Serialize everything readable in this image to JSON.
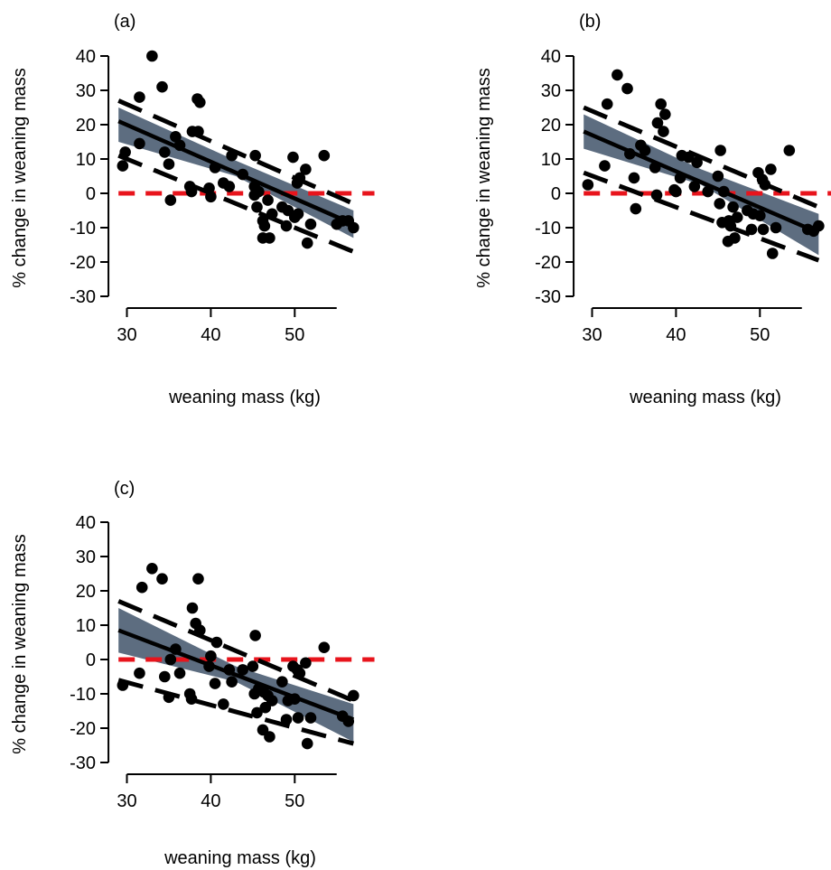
{
  "chart_data": [
    {
      "type": "scatter",
      "panel_label": "(a)",
      "xlabel": "weaning mass (kg)",
      "ylabel": "% change in weaning mass",
      "xlim": [
        28,
        57
      ],
      "ylim": [
        -30,
        40
      ],
      "xticks": [
        30,
        40,
        50
      ],
      "yticks": [
        -30,
        -20,
        -10,
        0,
        10,
        20,
        30,
        40
      ],
      "points": [
        [
          29.5,
          8
        ],
        [
          29.8,
          12
        ],
        [
          31.5,
          28
        ],
        [
          31.5,
          14.5
        ],
        [
          33,
          40
        ],
        [
          34.2,
          31
        ],
        [
          34.5,
          12
        ],
        [
          35,
          8.5
        ],
        [
          35.2,
          -2
        ],
        [
          35.8,
          16.5
        ],
        [
          36.3,
          14
        ],
        [
          37.5,
          2
        ],
        [
          37.7,
          0.5
        ],
        [
          37.8,
          18
        ],
        [
          38.4,
          27.5
        ],
        [
          38.5,
          18
        ],
        [
          38.7,
          26.5
        ],
        [
          39.8,
          1.5
        ],
        [
          40,
          -1
        ],
        [
          40.5,
          7.5
        ],
        [
          41.5,
          3
        ],
        [
          42.2,
          2
        ],
        [
          42.5,
          11
        ],
        [
          43.8,
          5.5
        ],
        [
          45.2,
          -0.5
        ],
        [
          45.2,
          2
        ],
        [
          45.3,
          11
        ],
        [
          45.5,
          -4
        ],
        [
          45.7,
          0.5
        ],
        [
          46.2,
          -13
        ],
        [
          46.2,
          -8
        ],
        [
          46.4,
          -9.5
        ],
        [
          46.8,
          -2
        ],
        [
          47,
          -13
        ],
        [
          47.3,
          -6
        ],
        [
          48.5,
          -4
        ],
        [
          49,
          -9.5
        ],
        [
          49.2,
          -5
        ],
        [
          49.8,
          10.5
        ],
        [
          50,
          -7
        ],
        [
          50.3,
          3
        ],
        [
          50.4,
          -6
        ],
        [
          50.6,
          4.5
        ],
        [
          51.3,
          7
        ],
        [
          51.5,
          -14.5
        ],
        [
          51.9,
          -9
        ],
        [
          53.5,
          11
        ],
        [
          55,
          -9
        ],
        [
          55.7,
          -8
        ],
        [
          56.4,
          -8
        ],
        [
          57,
          -10
        ]
      ],
      "fit": {
        "x": [
          29,
          57
        ],
        "y": [
          21,
          -9
        ]
      },
      "ci_band": {
        "x": [
          29,
          43,
          57
        ],
        "upper": [
          25,
          9.5,
          -5
        ],
        "lower": [
          15,
          5,
          -13
        ]
      },
      "prediction_interval": {
        "x": [
          29,
          57
        ],
        "upper": [
          27,
          -3
        ],
        "lower": [
          11,
          -17
        ]
      },
      "reference_line": {
        "y": 0,
        "color": "#e8141c"
      }
    },
    {
      "type": "scatter",
      "panel_label": "(b)",
      "xlabel": "weaning mass (kg)",
      "ylabel": "% change in weaning mass",
      "xlim": [
        28,
        57
      ],
      "ylim": [
        -30,
        40
      ],
      "xticks": [
        30,
        40,
        50
      ],
      "yticks": [
        -30,
        -20,
        -10,
        0,
        10,
        20,
        30,
        40
      ],
      "points": [
        [
          29.5,
          2.5
        ],
        [
          31.5,
          8
        ],
        [
          31.8,
          26
        ],
        [
          33,
          34.5
        ],
        [
          34.2,
          30.5
        ],
        [
          34.5,
          11.5
        ],
        [
          35,
          4.5
        ],
        [
          35.2,
          -4.5
        ],
        [
          35.8,
          14
        ],
        [
          36.3,
          12.5
        ],
        [
          37.5,
          7.5
        ],
        [
          37.7,
          -0.5
        ],
        [
          37.8,
          20.5
        ],
        [
          38.2,
          26
        ],
        [
          38.5,
          18
        ],
        [
          38.7,
          23
        ],
        [
          39.8,
          1
        ],
        [
          40,
          0.5
        ],
        [
          40.5,
          4.5
        ],
        [
          40.7,
          11
        ],
        [
          41.5,
          10.5
        ],
        [
          42.2,
          2
        ],
        [
          42.5,
          9
        ],
        [
          43.8,
          0.5
        ],
        [
          45,
          5
        ],
        [
          45.2,
          -3
        ],
        [
          45.3,
          12.5
        ],
        [
          45.5,
          -8.5
        ],
        [
          45.7,
          0.5
        ],
        [
          46.2,
          -14
        ],
        [
          46.3,
          -8
        ],
        [
          46.5,
          -9.5
        ],
        [
          46.8,
          -4
        ],
        [
          47,
          -13
        ],
        [
          47.3,
          -7
        ],
        [
          48.5,
          -5
        ],
        [
          49,
          -10.5
        ],
        [
          49.2,
          -6
        ],
        [
          49.8,
          6
        ],
        [
          50,
          -6.5
        ],
        [
          50.3,
          4
        ],
        [
          50.4,
          -10.5
        ],
        [
          50.6,
          2.5
        ],
        [
          51.3,
          7
        ],
        [
          51.5,
          -17.5
        ],
        [
          51.9,
          -10
        ],
        [
          53.5,
          12.5
        ],
        [
          55.7,
          -10.5
        ],
        [
          56.4,
          -11
        ],
        [
          57,
          -9.5
        ]
      ],
      "fit": {
        "x": [
          29,
          57
        ],
        "y": [
          18,
          -11.5
        ]
      },
      "ci_band": {
        "x": [
          29,
          43,
          57
        ],
        "upper": [
          23,
          7,
          -6
        ],
        "lower": [
          13,
          2.5,
          -18
        ]
      },
      "prediction_interval": {
        "x": [
          29,
          57
        ],
        "upper": [
          25,
          -4
        ],
        "lower": [
          6,
          -19.5
        ]
      },
      "reference_line": {
        "y": 0,
        "color": "#e8141c"
      }
    },
    {
      "type": "scatter",
      "panel_label": "(c)",
      "xlabel": "weaning mass (kg)",
      "ylabel": "% change in weaning mass",
      "xlim": [
        28,
        57
      ],
      "ylim": [
        -30,
        40
      ],
      "xticks": [
        30,
        40,
        50
      ],
      "yticks": [
        -30,
        -20,
        -10,
        0,
        10,
        20,
        30,
        40
      ],
      "points": [
        [
          29.5,
          -7.5
        ],
        [
          31.5,
          -4
        ],
        [
          31.8,
          21
        ],
        [
          33,
          26.5
        ],
        [
          34.2,
          23.5
        ],
        [
          34.5,
          -5
        ],
        [
          35,
          -11
        ],
        [
          35.2,
          0
        ],
        [
          35.8,
          3
        ],
        [
          36.3,
          -4
        ],
        [
          37.5,
          -10
        ],
        [
          37.7,
          -11.5
        ],
        [
          37.8,
          15
        ],
        [
          38.2,
          10.5
        ],
        [
          38.5,
          23.5
        ],
        [
          38.7,
          8.5
        ],
        [
          39.8,
          -2
        ],
        [
          40,
          1
        ],
        [
          40.5,
          -7
        ],
        [
          40.7,
          5
        ],
        [
          41.5,
          -13
        ],
        [
          42.2,
          -3
        ],
        [
          42.5,
          -6.5
        ],
        [
          43.8,
          -3
        ],
        [
          45,
          -2
        ],
        [
          45.2,
          -10
        ],
        [
          45.3,
          7
        ],
        [
          45.5,
          -15.5
        ],
        [
          45.7,
          -8.5
        ],
        [
          46.2,
          -20.5
        ],
        [
          46.3,
          -9.5
        ],
        [
          46.5,
          -14
        ],
        [
          46.8,
          -10.5
        ],
        [
          47,
          -22.5
        ],
        [
          47.3,
          -12
        ],
        [
          48.5,
          -6.5
        ],
        [
          49,
          -17.5
        ],
        [
          49.2,
          -12
        ],
        [
          49.8,
          -2
        ],
        [
          50,
          -11.5
        ],
        [
          50.3,
          -3
        ],
        [
          50.4,
          -17
        ],
        [
          50.6,
          -4
        ],
        [
          51.3,
          -1
        ],
        [
          51.5,
          -24.5
        ],
        [
          51.9,
          -17
        ],
        [
          53.5,
          3.5
        ],
        [
          55.7,
          -16.5
        ],
        [
          56.4,
          -18
        ],
        [
          57,
          -10.5
        ]
      ],
      "fit": {
        "x": [
          29,
          57
        ],
        "y": [
          8.5,
          -17.5
        ]
      },
      "ci_band": {
        "x": [
          29,
          43,
          57
        ],
        "upper": [
          15,
          -2,
          -13
        ],
        "lower": [
          2,
          -6.5,
          -24
        ]
      },
      "prediction_interval": {
        "x": [
          29,
          57
        ],
        "upper": [
          17,
          -12
        ],
        "lower": [
          -6,
          -24.5
        ]
      },
      "reference_line": {
        "y": 0,
        "color": "#e8141c"
      }
    }
  ],
  "colors": {
    "ci_band": "#5d6d80",
    "reference_line": "#e8141c",
    "points": "#000000"
  }
}
